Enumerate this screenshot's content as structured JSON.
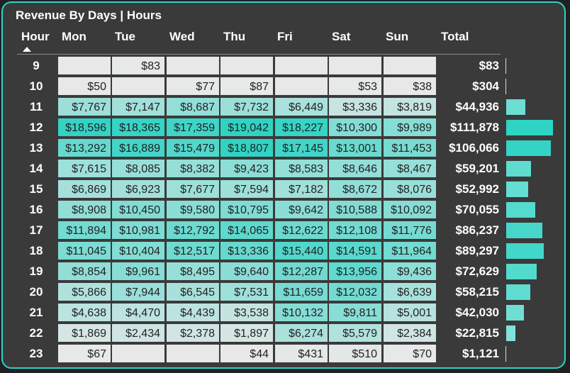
{
  "title": "Revenue By Days | Hours",
  "columns": {
    "hour": "Hour",
    "mon": "Mon",
    "tue": "Tue",
    "wed": "Wed",
    "thu": "Thu",
    "fri": "Fri",
    "sat": "Sat",
    "sun": "Sun",
    "total": "Total"
  },
  "sort": {
    "column": "Hour",
    "direction": "ascending",
    "icon": "sort-ascending-icon"
  },
  "colors": {
    "accent": "#2ed3c4",
    "cell_empty": "#e8e8e8",
    "card_bg": "#3a3a3a"
  },
  "chart_data": {
    "type": "table",
    "day_values": [
      {
        "hour": "9",
        "mon": null,
        "tue": 83,
        "wed": null,
        "thu": null,
        "fri": null,
        "sat": null,
        "sun": null,
        "total": 83
      },
      {
        "hour": "10",
        "mon": 50,
        "tue": null,
        "wed": 77,
        "thu": 87,
        "fri": null,
        "sat": 53,
        "sun": 38,
        "total": 304
      },
      {
        "hour": "11",
        "mon": 7767,
        "tue": 7147,
        "wed": 8687,
        "thu": 7732,
        "fri": 6449,
        "sat": 3336,
        "sun": 3819,
        "total": 44936
      },
      {
        "hour": "12",
        "mon": 18596,
        "tue": 18365,
        "wed": 17359,
        "thu": 19042,
        "fri": 18227,
        "sat": 10300,
        "sun": 9989,
        "total": 111878
      },
      {
        "hour": "13",
        "mon": 13292,
        "tue": 16889,
        "wed": 15479,
        "thu": 18807,
        "fri": 17145,
        "sat": 13001,
        "sun": 11453,
        "total": 106066
      },
      {
        "hour": "14",
        "mon": 7615,
        "tue": 8085,
        "wed": 8382,
        "thu": 9423,
        "fri": 8583,
        "sat": 8646,
        "sun": 8467,
        "total": 59201
      },
      {
        "hour": "15",
        "mon": 6869,
        "tue": 6923,
        "wed": 7677,
        "thu": 7594,
        "fri": 7182,
        "sat": 8672,
        "sun": 8076,
        "total": 52992
      },
      {
        "hour": "16",
        "mon": 8908,
        "tue": 10450,
        "wed": 9580,
        "thu": 10795,
        "fri": 9642,
        "sat": 10588,
        "sun": 10092,
        "total": 70055
      },
      {
        "hour": "17",
        "mon": 11894,
        "tue": 10981,
        "wed": 12792,
        "thu": 14065,
        "fri": 12622,
        "sat": 12108,
        "sun": 11776,
        "total": 86237
      },
      {
        "hour": "18",
        "mon": 11045,
        "tue": 10404,
        "wed": 12517,
        "thu": 13336,
        "fri": 15440,
        "sat": 14591,
        "sun": 11964,
        "total": 89297
      },
      {
        "hour": "19",
        "mon": 8854,
        "tue": 9961,
        "wed": 8495,
        "thu": 9640,
        "fri": 12287,
        "sat": 13956,
        "sun": 9436,
        "total": 72629
      },
      {
        "hour": "20",
        "mon": 5866,
        "tue": 7944,
        "wed": 6545,
        "thu": 7531,
        "fri": 11659,
        "sat": 12032,
        "sun": 6639,
        "total": 58215
      },
      {
        "hour": "21",
        "mon": 4638,
        "tue": 4470,
        "wed": 4439,
        "thu": 3538,
        "fri": 10132,
        "sat": 9811,
        "sun": 5001,
        "total": 42030
      },
      {
        "hour": "22",
        "mon": 1869,
        "tue": 2434,
        "wed": 2378,
        "thu": 1897,
        "fri": 6274,
        "sat": 5579,
        "sun": 2384,
        "total": 22815
      },
      {
        "hour": "23",
        "mon": 67,
        "tue": null,
        "wed": null,
        "thu": 44,
        "fri": 431,
        "sat": 510,
        "sun": 70,
        "total": 1121
      }
    ]
  }
}
